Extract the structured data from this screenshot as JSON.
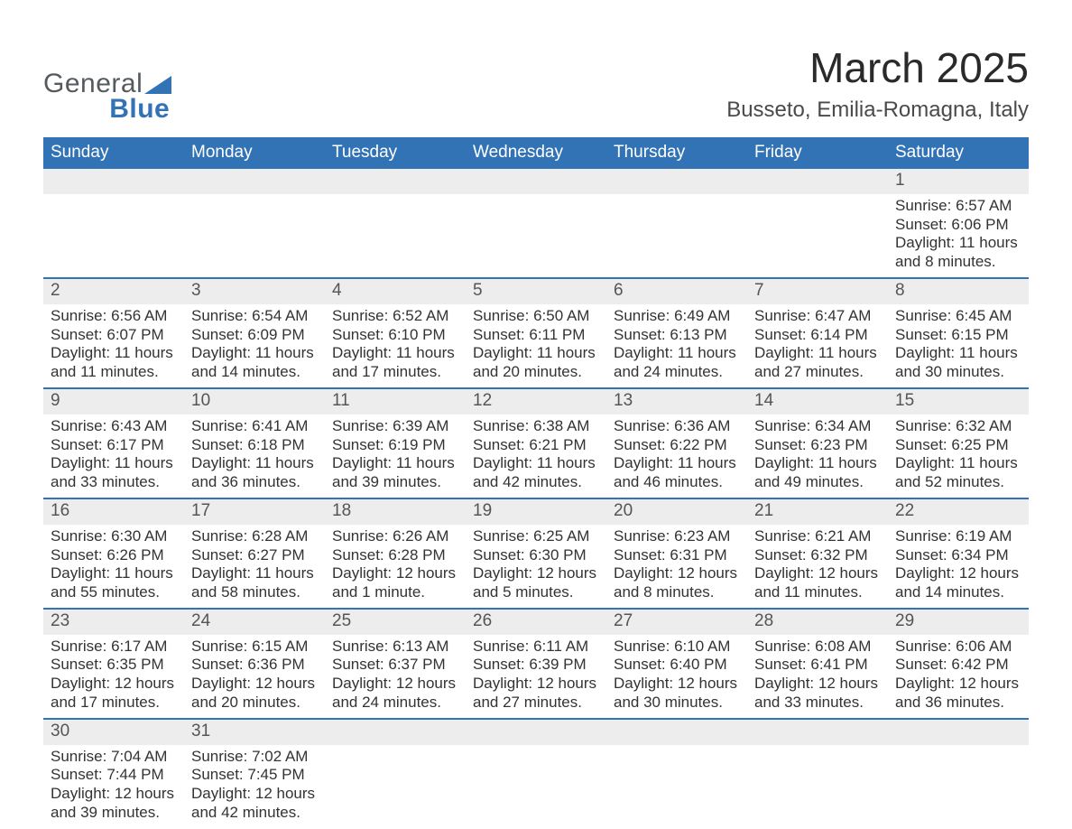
{
  "brand": {
    "word1": "General",
    "word2": "Blue",
    "accent": "#3273b6",
    "neutral": "#555a5e"
  },
  "title": "March 2025",
  "location": "Busseto, Emilia-Romagna, Italy",
  "colors": {
    "header_bg": "#3273b6",
    "header_text": "#ffffff",
    "row_divider": "#3273b6",
    "daynum_bg": "#ededed",
    "daynum_text": "#555555",
    "body_text": "#333333",
    "page_bg": "#ffffff"
  },
  "typography": {
    "title_fontsize": 46,
    "location_fontsize": 24,
    "header_fontsize": 19,
    "daynum_fontsize": 19,
    "cell_fontsize": 17
  },
  "day_headers": [
    "Sunday",
    "Monday",
    "Tuesday",
    "Wednesday",
    "Thursday",
    "Friday",
    "Saturday"
  ],
  "weeks": [
    [
      null,
      null,
      null,
      null,
      null,
      null,
      {
        "n": "1",
        "sunrise": "Sunrise: 6:57 AM",
        "sunset": "Sunset: 6:06 PM",
        "daylight": "Daylight: 11 hours and 8 minutes."
      }
    ],
    [
      {
        "n": "2",
        "sunrise": "Sunrise: 6:56 AM",
        "sunset": "Sunset: 6:07 PM",
        "daylight": "Daylight: 11 hours and 11 minutes."
      },
      {
        "n": "3",
        "sunrise": "Sunrise: 6:54 AM",
        "sunset": "Sunset: 6:09 PM",
        "daylight": "Daylight: 11 hours and 14 minutes."
      },
      {
        "n": "4",
        "sunrise": "Sunrise: 6:52 AM",
        "sunset": "Sunset: 6:10 PM",
        "daylight": "Daylight: 11 hours and 17 minutes."
      },
      {
        "n": "5",
        "sunrise": "Sunrise: 6:50 AM",
        "sunset": "Sunset: 6:11 PM",
        "daylight": "Daylight: 11 hours and 20 minutes."
      },
      {
        "n": "6",
        "sunrise": "Sunrise: 6:49 AM",
        "sunset": "Sunset: 6:13 PM",
        "daylight": "Daylight: 11 hours and 24 minutes."
      },
      {
        "n": "7",
        "sunrise": "Sunrise: 6:47 AM",
        "sunset": "Sunset: 6:14 PM",
        "daylight": "Daylight: 11 hours and 27 minutes."
      },
      {
        "n": "8",
        "sunrise": "Sunrise: 6:45 AM",
        "sunset": "Sunset: 6:15 PM",
        "daylight": "Daylight: 11 hours and 30 minutes."
      }
    ],
    [
      {
        "n": "9",
        "sunrise": "Sunrise: 6:43 AM",
        "sunset": "Sunset: 6:17 PM",
        "daylight": "Daylight: 11 hours and 33 minutes."
      },
      {
        "n": "10",
        "sunrise": "Sunrise: 6:41 AM",
        "sunset": "Sunset: 6:18 PM",
        "daylight": "Daylight: 11 hours and 36 minutes."
      },
      {
        "n": "11",
        "sunrise": "Sunrise: 6:39 AM",
        "sunset": "Sunset: 6:19 PM",
        "daylight": "Daylight: 11 hours and 39 minutes."
      },
      {
        "n": "12",
        "sunrise": "Sunrise: 6:38 AM",
        "sunset": "Sunset: 6:21 PM",
        "daylight": "Daylight: 11 hours and 42 minutes."
      },
      {
        "n": "13",
        "sunrise": "Sunrise: 6:36 AM",
        "sunset": "Sunset: 6:22 PM",
        "daylight": "Daylight: 11 hours and 46 minutes."
      },
      {
        "n": "14",
        "sunrise": "Sunrise: 6:34 AM",
        "sunset": "Sunset: 6:23 PM",
        "daylight": "Daylight: 11 hours and 49 minutes."
      },
      {
        "n": "15",
        "sunrise": "Sunrise: 6:32 AM",
        "sunset": "Sunset: 6:25 PM",
        "daylight": "Daylight: 11 hours and 52 minutes."
      }
    ],
    [
      {
        "n": "16",
        "sunrise": "Sunrise: 6:30 AM",
        "sunset": "Sunset: 6:26 PM",
        "daylight": "Daylight: 11 hours and 55 minutes."
      },
      {
        "n": "17",
        "sunrise": "Sunrise: 6:28 AM",
        "sunset": "Sunset: 6:27 PM",
        "daylight": "Daylight: 11 hours and 58 minutes."
      },
      {
        "n": "18",
        "sunrise": "Sunrise: 6:26 AM",
        "sunset": "Sunset: 6:28 PM",
        "daylight": "Daylight: 12 hours and 1 minute."
      },
      {
        "n": "19",
        "sunrise": "Sunrise: 6:25 AM",
        "sunset": "Sunset: 6:30 PM",
        "daylight": "Daylight: 12 hours and 5 minutes."
      },
      {
        "n": "20",
        "sunrise": "Sunrise: 6:23 AM",
        "sunset": "Sunset: 6:31 PM",
        "daylight": "Daylight: 12 hours and 8 minutes."
      },
      {
        "n": "21",
        "sunrise": "Sunrise: 6:21 AM",
        "sunset": "Sunset: 6:32 PM",
        "daylight": "Daylight: 12 hours and 11 minutes."
      },
      {
        "n": "22",
        "sunrise": "Sunrise: 6:19 AM",
        "sunset": "Sunset: 6:34 PM",
        "daylight": "Daylight: 12 hours and 14 minutes."
      }
    ],
    [
      {
        "n": "23",
        "sunrise": "Sunrise: 6:17 AM",
        "sunset": "Sunset: 6:35 PM",
        "daylight": "Daylight: 12 hours and 17 minutes."
      },
      {
        "n": "24",
        "sunrise": "Sunrise: 6:15 AM",
        "sunset": "Sunset: 6:36 PM",
        "daylight": "Daylight: 12 hours and 20 minutes."
      },
      {
        "n": "25",
        "sunrise": "Sunrise: 6:13 AM",
        "sunset": "Sunset: 6:37 PM",
        "daylight": "Daylight: 12 hours and 24 minutes."
      },
      {
        "n": "26",
        "sunrise": "Sunrise: 6:11 AM",
        "sunset": "Sunset: 6:39 PM",
        "daylight": "Daylight: 12 hours and 27 minutes."
      },
      {
        "n": "27",
        "sunrise": "Sunrise: 6:10 AM",
        "sunset": "Sunset: 6:40 PM",
        "daylight": "Daylight: 12 hours and 30 minutes."
      },
      {
        "n": "28",
        "sunrise": "Sunrise: 6:08 AM",
        "sunset": "Sunset: 6:41 PM",
        "daylight": "Daylight: 12 hours and 33 minutes."
      },
      {
        "n": "29",
        "sunrise": "Sunrise: 6:06 AM",
        "sunset": "Sunset: 6:42 PM",
        "daylight": "Daylight: 12 hours and 36 minutes."
      }
    ],
    [
      {
        "n": "30",
        "sunrise": "Sunrise: 7:04 AM",
        "sunset": "Sunset: 7:44 PM",
        "daylight": "Daylight: 12 hours and 39 minutes."
      },
      {
        "n": "31",
        "sunrise": "Sunrise: 7:02 AM",
        "sunset": "Sunset: 7:45 PM",
        "daylight": "Daylight: 12 hours and 42 minutes."
      },
      null,
      null,
      null,
      null,
      null
    ]
  ]
}
